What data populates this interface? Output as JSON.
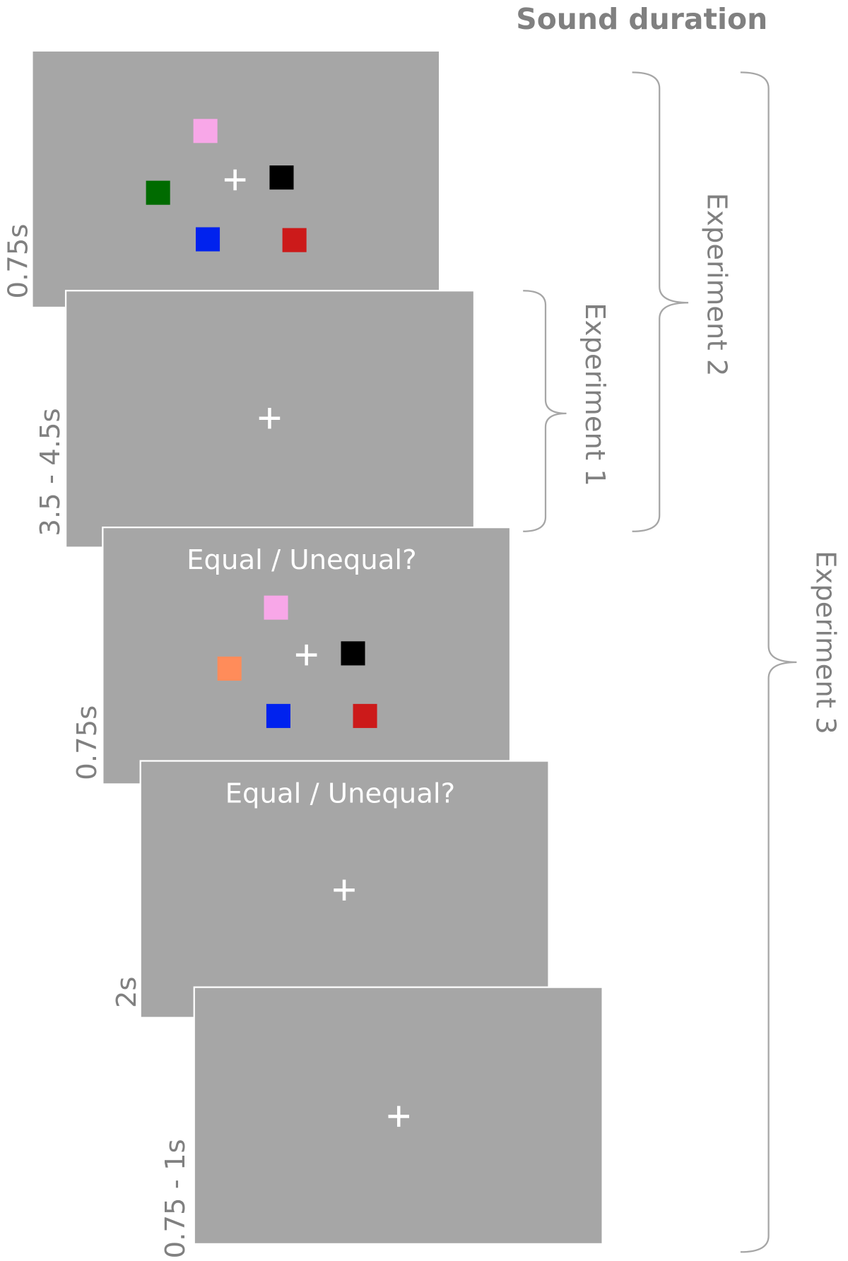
{
  "header": {
    "title": "Sound duration"
  },
  "panels": [
    {
      "duration": "0.75s"
    },
    {
      "duration": "3.5 - 4.5s"
    },
    {
      "duration": "0.75s",
      "question": "Equal / Unequal?"
    },
    {
      "duration": "2s",
      "question": "Equal / Unequal?"
    },
    {
      "duration": "0.75 - 1s"
    }
  ],
  "brackets": [
    {
      "label": "Experiment 1"
    },
    {
      "label": "Experiment 2"
    },
    {
      "label": "Experiment 3"
    }
  ]
}
